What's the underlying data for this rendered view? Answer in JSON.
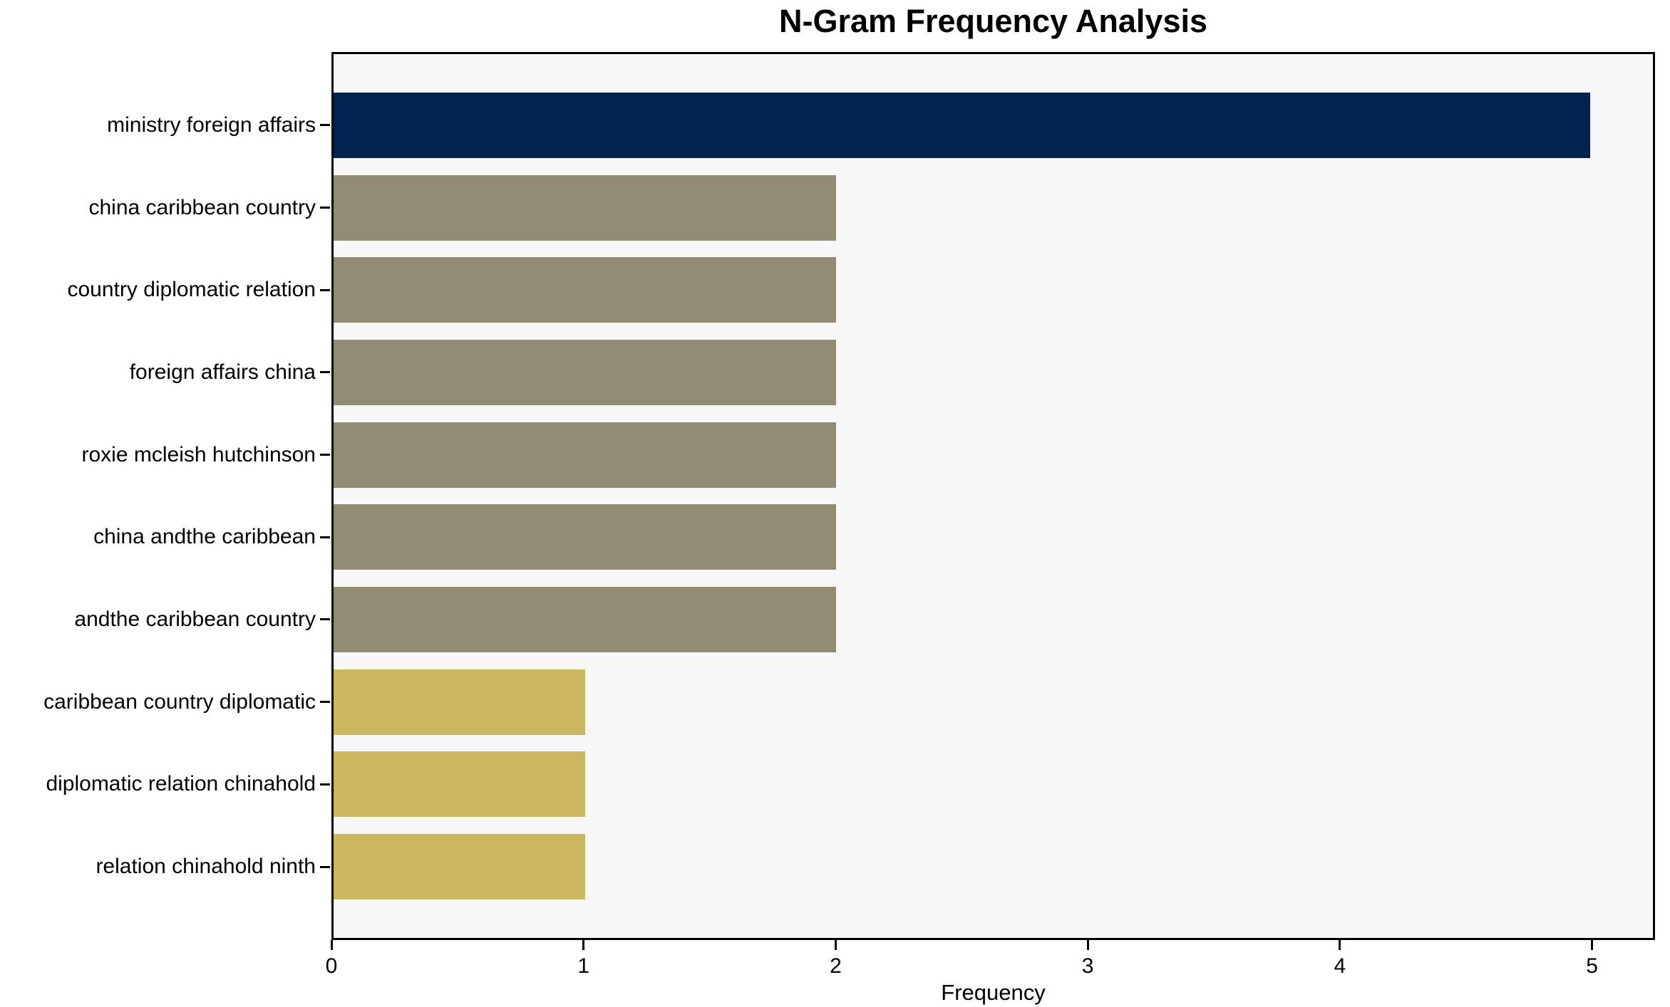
{
  "chart_data": {
    "type": "bar",
    "orientation": "horizontal",
    "title": "N-Gram Frequency Analysis",
    "xlabel": "Frequency",
    "ylabel": "",
    "xlim": [
      0,
      5.25
    ],
    "xticks": [
      "0",
      "1",
      "2",
      "3",
      "4",
      "5"
    ],
    "grid": false,
    "legend": false,
    "categories": [
      "ministry foreign affairs",
      "china caribbean country",
      "country diplomatic relation",
      "foreign affairs china",
      "roxie mcleish hutchinson",
      "china andthe caribbean",
      "andthe caribbean country",
      "caribbean country diplomatic",
      "diplomatic relation chinahold",
      "relation chinahold ninth"
    ],
    "values": [
      5,
      2,
      2,
      2,
      2,
      2,
      2,
      1,
      1,
      1
    ],
    "bar_colors": [
      "#02234e",
      "#938c74",
      "#938c74",
      "#938c74",
      "#938c74",
      "#938c74",
      "#938c74",
      "#cab861",
      "#cab861",
      "#cab861"
    ],
    "colors": {
      "navy_high": "#02234e",
      "olive_mid": "#938c74",
      "khaki_low": "#cab861",
      "plot_background": "#f7f7f7",
      "page_background": "#ffffff",
      "axis": "#000000",
      "text": "#000000"
    }
  }
}
